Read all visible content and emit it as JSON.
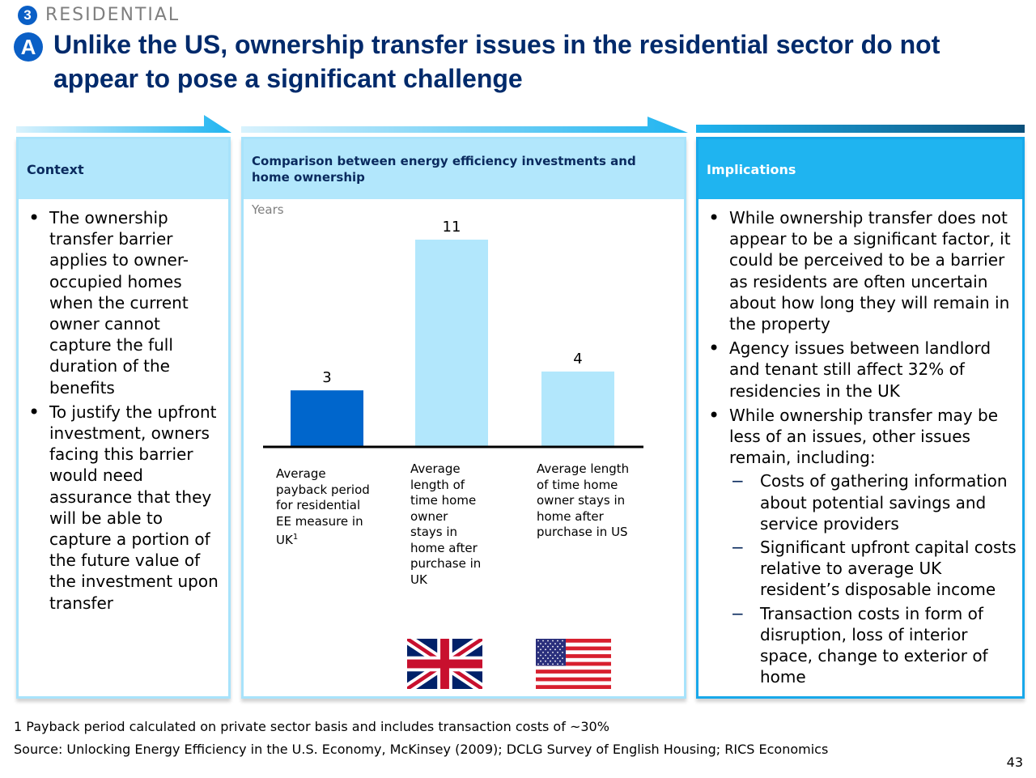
{
  "section": {
    "number": "3",
    "label": "RESIDENTIAL"
  },
  "title": {
    "letter": "A",
    "text": "Unlike the US, ownership transfer issues in the residential sector do not appear to pose a significant challenge"
  },
  "context": {
    "heading": "Context",
    "bullets": [
      "The ownership transfer barrier applies to owner-occupied homes when the current owner cannot capture the full duration of the benefits",
      "To justify the upfront investment, owners facing this barrier would need assurance that they will be able to capture a portion of the future value of the investment upon transfer"
    ]
  },
  "comparison": {
    "heading": "Comparison between energy efficiency investments and home ownership",
    "flag_icons": [
      "uk-flag-icon",
      "us-flag-icon"
    ]
  },
  "chart_data": {
    "type": "bar",
    "ylabel": "Years",
    "categories": [
      "Average payback period for residential EE measure in UK",
      "Average length of time home owner stays in home after purchase in UK",
      "Average length of time home owner stays in home after purchase in US"
    ],
    "category_labels": [
      "Average payback period for residential EE measure in UK",
      "Average length of time home owner stays in home after purchase in UK",
      "Average length of time home owner stays in home after purchase in US"
    ],
    "footnote_marker": "1",
    "values": [
      3,
      11,
      4
    ],
    "value_labels": [
      "3",
      "11",
      "4"
    ],
    "bar_colors": [
      "#0066cc",
      "#b2e7fc",
      "#b2e7fc"
    ],
    "ylim": [
      0,
      11
    ]
  },
  "implications": {
    "heading": "Implications",
    "bullets": [
      "While ownership transfer does not appear to be a significant factor, it could be perceived to be a barrier as residents are often uncertain about how long they will remain in the property",
      "Agency issues between landlord and tenant still affect 32% of residencies in the UK",
      "While ownership transfer may be less of an issues, other issues remain, including:"
    ],
    "sub_bullets": [
      "Costs of gathering information about potential savings and service providers",
      "Significant upfront capital costs relative to average UK resident’s disposable income",
      "Transaction costs in form of disruption, loss of interior space, change to exterior of home"
    ]
  },
  "footnotes": {
    "note1": "1 Payback period calculated on private sector basis and includes transaction costs of ~30%",
    "source": "Source: Unlocking Energy Efficiency in the U.S. Economy, McKinsey (2009); DCLG Survey of English Housing; RICS Economics"
  },
  "page_number": "43",
  "colors": {
    "title": "#002a6b",
    "accent": "#0a5fc6",
    "light_panel": "#b2e7fc",
    "impl_header": "#1fb4f0"
  }
}
